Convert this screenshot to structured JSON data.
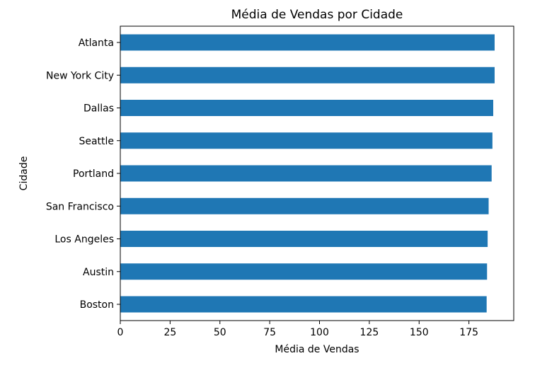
{
  "chart_data": {
    "type": "bar",
    "orientation": "horizontal",
    "title": "Média de Vendas por Cidade",
    "xlabel": "Média de Vendas",
    "ylabel": "Cidade",
    "categories": [
      "Atlanta",
      "New York City",
      "Dallas",
      "Seattle",
      "Portland",
      "San Francisco",
      "Los Angeles",
      "Austin",
      "Boston"
    ],
    "values": [
      187.9,
      187.9,
      187.2,
      186.8,
      186.4,
      184.9,
      184.4,
      184.1,
      183.9
    ],
    "xlim": [
      0,
      197.5
    ],
    "xticks": [
      0,
      25,
      50,
      75,
      100,
      125,
      150,
      175
    ],
    "grid": false,
    "legend": false,
    "colors": {
      "bar": "#1f77b4",
      "axis": "#000000"
    }
  }
}
